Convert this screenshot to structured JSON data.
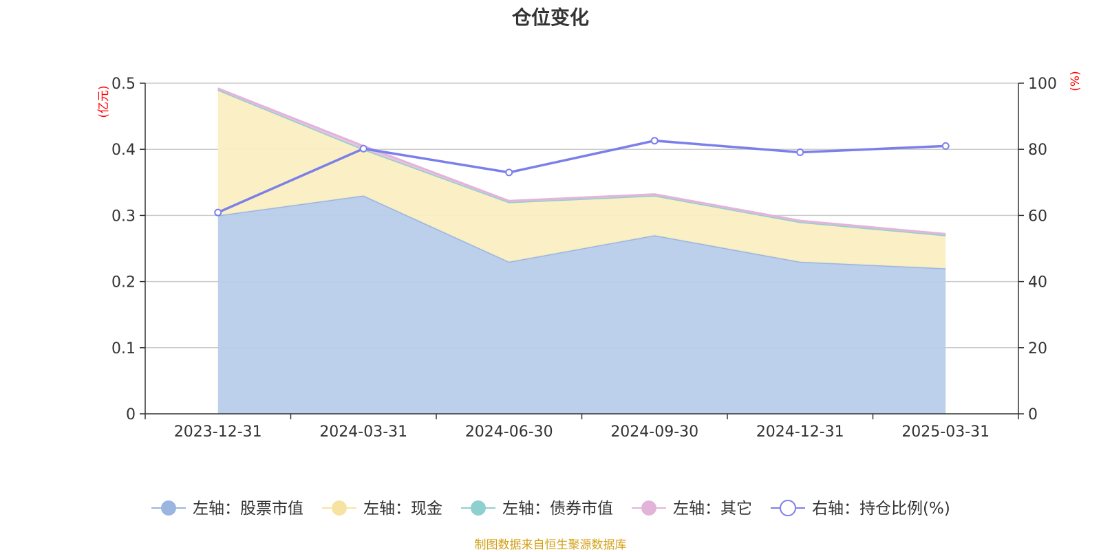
{
  "chart_data": {
    "type": "area",
    "title": "仓位变化",
    "categories": [
      "2023-12-31",
      "2024-03-31",
      "2024-06-30",
      "2024-09-30",
      "2024-12-31",
      "2025-03-31"
    ],
    "left_axis": {
      "unit": "(亿元)",
      "ylim": [
        0,
        0.5
      ],
      "ticks": [
        "0",
        "0.1",
        "0.2",
        "0.3",
        "0.4",
        "0.5"
      ]
    },
    "right_axis": {
      "unit": "(%)",
      "ylim": [
        0,
        100
      ],
      "ticks": [
        "0",
        "20",
        "40",
        "60",
        "80",
        "100"
      ]
    },
    "stacked_series": [
      {
        "name": "左轴：股票市值",
        "color": "#9ab5e0",
        "fill": "#b8cdea",
        "values": [
          0.3,
          0.33,
          0.23,
          0.27,
          0.23,
          0.22
        ]
      },
      {
        "name": "左轴：现金",
        "color": "#f7e3a1",
        "fill": "#faeec2",
        "values": [
          0.19,
          0.07,
          0.09,
          0.06,
          0.06,
          0.05
        ]
      },
      {
        "name": "左轴：债券市值",
        "color": "#8ecfcf",
        "fill": "#a8dcdc",
        "values": [
          0,
          0,
          0,
          0,
          0,
          0
        ]
      },
      {
        "name": "左轴：其它",
        "color": "#e3b4da",
        "fill": "#e8c3e0",
        "values": [
          0.002,
          0.005,
          0.002,
          0.002,
          0.002,
          0.002
        ]
      }
    ],
    "line_series": {
      "name": "右轴：持仓比例(%)",
      "color": "#7b7fea",
      "values": [
        60.9,
        80.2,
        73.0,
        82.6,
        79.1,
        81.0
      ]
    },
    "grid": true,
    "legend_position": "bottom"
  },
  "source_note": "制图数据来自恒生聚源数据库"
}
